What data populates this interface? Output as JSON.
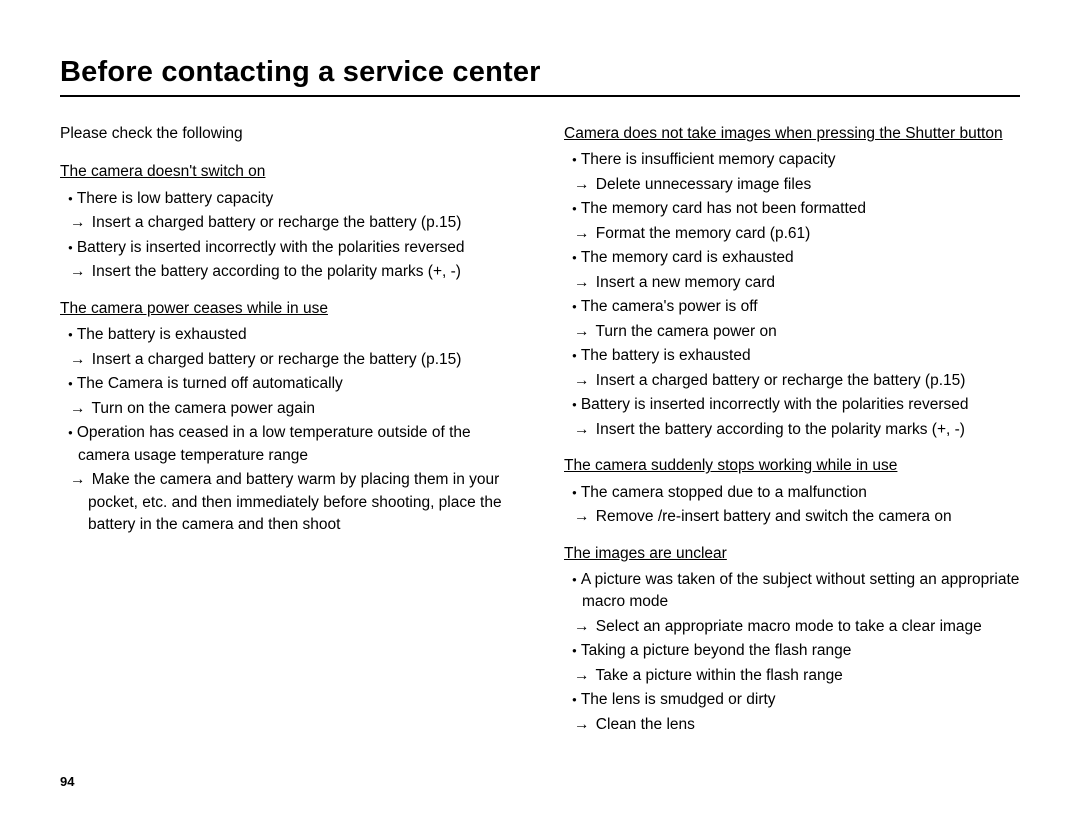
{
  "title": "Before contacting a service center",
  "page_number": "94",
  "arrow": "→",
  "left": {
    "intro": "Please check the following",
    "sections": [
      {
        "heading": "The camera doesn't switch on",
        "items": [
          {
            "text": "There is low battery capacity",
            "action": "Insert a charged battery or recharge the battery (p.15)"
          },
          {
            "text": "Battery is inserted incorrectly with the polarities reversed",
            "action": "Insert the battery according to the polarity marks (+, -)"
          }
        ]
      },
      {
        "heading": "The camera power ceases while in use",
        "items": [
          {
            "text": "The battery is exhausted",
            "action": "Insert a charged battery or recharge the battery (p.15)"
          },
          {
            "text": "The Camera is turned off automatically",
            "action": "Turn on the camera power again"
          },
          {
            "text": "Operation has ceased in a low temperature outside of the camera usage temperature range",
            "action": "Make the camera and battery warm by placing them in your pocket, etc. and then immediately before shooting, place the battery in the camera and then shoot"
          }
        ]
      }
    ]
  },
  "right": {
    "sections": [
      {
        "heading": "Camera does not take images when pressing the Shutter button",
        "items": [
          {
            "text": "There is insufficient memory capacity",
            "action": "Delete unnecessary image files"
          },
          {
            "text": "The memory card has not been formatted",
            "action": "Format the memory card (p.61)"
          },
          {
            "text": "The memory card is exhausted",
            "action": "Insert a new memory card"
          },
          {
            "text": "The camera's power is off",
            "action": "Turn the camera power on"
          },
          {
            "text": "The battery is exhausted",
            "action": "Insert a charged battery or recharge the battery (p.15)"
          },
          {
            "text": "Battery is inserted incorrectly with the polarities reversed",
            "action": "Insert the battery according to the polarity marks (+, -)"
          }
        ]
      },
      {
        "heading": "The camera suddenly stops working while in use",
        "items": [
          {
            "text": "The camera stopped due to a malfunction",
            "action": "Remove /re-insert battery and switch the camera on"
          }
        ]
      },
      {
        "heading": "The images are unclear",
        "items": [
          {
            "text": "A picture was taken of the subject without setting an appropriate macro mode",
            "action": "Select an appropriate macro mode to take a clear image"
          },
          {
            "text": "Taking a picture beyond the flash range",
            "action": "Take a picture within the flash range"
          },
          {
            "text": "The lens is smudged or dirty",
            "action": "Clean the lens"
          }
        ]
      }
    ]
  }
}
